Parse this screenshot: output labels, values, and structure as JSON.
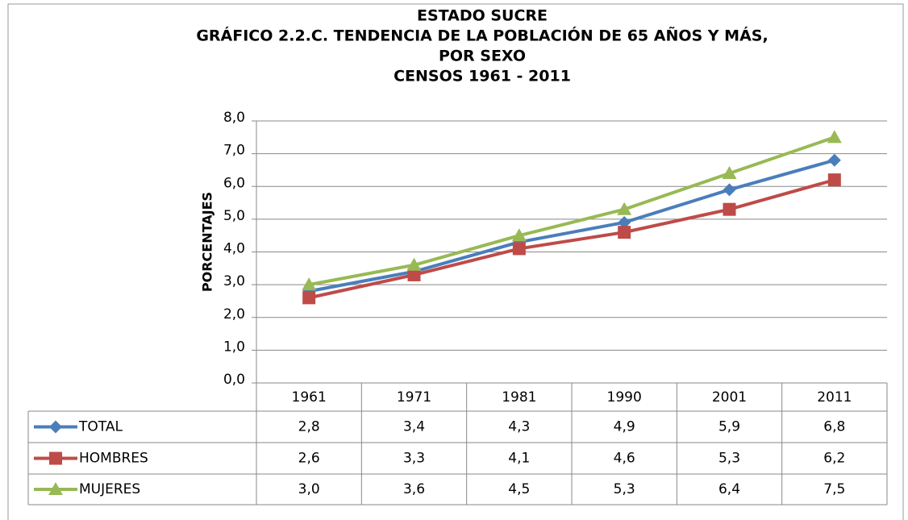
{
  "chart_data": {
    "type": "line",
    "title": [
      "ESTADO SUCRE",
      "GRÁFICO 2.2.C. TENDENCIA DE LA POBLACIÓN  DE 65 AÑOS Y MÁS,",
      "POR SEXO",
      "CENSOS 1961 - 2011"
    ],
    "y_label": "PORCENTAJES",
    "categories": [
      "1961",
      "1971",
      "1981",
      "1990",
      "2001",
      "2011"
    ],
    "series": [
      {
        "name": "TOTAL",
        "color": "#4a7ebb",
        "marker": "diamond",
        "values": [
          2.8,
          3.4,
          4.3,
          4.9,
          5.9,
          6.8
        ],
        "value_labels": [
          "2,8",
          "3,4",
          "4,3",
          "4,9",
          "5,9",
          "6,8"
        ]
      },
      {
        "name": "HOMBRES",
        "color": "#be4b48",
        "marker": "square",
        "values": [
          2.6,
          3.3,
          4.1,
          4.6,
          5.3,
          6.2
        ],
        "value_labels": [
          "2,6",
          "3,3",
          "4,1",
          "4,6",
          "5,3",
          "6,2"
        ]
      },
      {
        "name": "MUJERES",
        "color": "#98b954",
        "marker": "triangle",
        "values": [
          3.0,
          3.6,
          4.5,
          5.3,
          6.4,
          7.5
        ],
        "value_labels": [
          "3,0",
          "3,6",
          "4,5",
          "5,3",
          "6,4",
          "7,5"
        ]
      }
    ],
    "ylim": [
      0,
      8
    ],
    "yticks": [
      {
        "value": 0,
        "label": "0,0"
      },
      {
        "value": 1,
        "label": "1,0"
      },
      {
        "value": 2,
        "label": "2,0"
      },
      {
        "value": 3,
        "label": "3,0"
      },
      {
        "value": 4,
        "label": "4,0"
      },
      {
        "value": 5,
        "label": "5,0"
      },
      {
        "value": 6,
        "label": "6,0"
      },
      {
        "value": 7,
        "label": "7,0"
      },
      {
        "value": 8,
        "label": "8,0"
      }
    ],
    "grid": true
  }
}
